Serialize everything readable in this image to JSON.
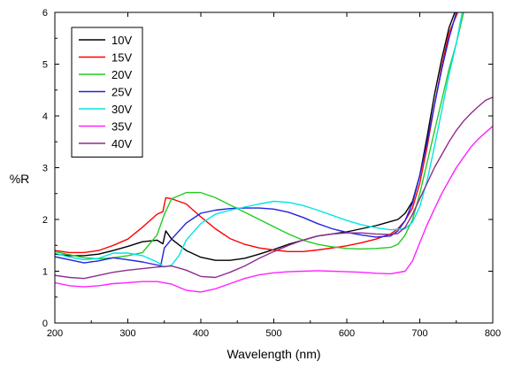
{
  "chart_data": {
    "type": "line",
    "title": "",
    "xlabel": "Wavelength (nm)",
    "ylabel": "%R",
    "xlim": [
      200,
      800
    ],
    "ylim": [
      0,
      6
    ],
    "xticks": [
      200,
      300,
      400,
      500,
      600,
      700,
      800
    ],
    "yticks": [
      0,
      1,
      2,
      3,
      4,
      5,
      6
    ],
    "grid": false,
    "legend_position": "top-left",
    "series": [
      {
        "name": "10V",
        "color": "#000000",
        "x": [
          200,
          220,
          240,
          260,
          280,
          300,
          320,
          340,
          348,
          352,
          360,
          380,
          400,
          420,
          440,
          460,
          480,
          500,
          520,
          540,
          560,
          580,
          600,
          620,
          640,
          660,
          670,
          680,
          690,
          700,
          710,
          720,
          730,
          740,
          748
        ],
        "y": [
          1.33,
          1.3,
          1.3,
          1.33,
          1.4,
          1.48,
          1.57,
          1.6,
          1.53,
          1.78,
          1.62,
          1.4,
          1.27,
          1.21,
          1.21,
          1.25,
          1.33,
          1.42,
          1.52,
          1.6,
          1.68,
          1.72,
          1.76,
          1.82,
          1.88,
          1.96,
          2.0,
          2.12,
          2.35,
          2.85,
          3.6,
          4.4,
          5.1,
          5.7,
          6.0
        ]
      },
      {
        "name": "15V",
        "color": "#ff0000",
        "x": [
          200,
          220,
          240,
          260,
          280,
          300,
          320,
          340,
          348,
          352,
          360,
          380,
          400,
          420,
          440,
          460,
          480,
          500,
          520,
          540,
          560,
          580,
          600,
          620,
          640,
          660,
          670,
          680,
          690,
          700,
          710,
          720,
          730,
          740,
          752
        ],
        "y": [
          1.4,
          1.36,
          1.36,
          1.4,
          1.5,
          1.62,
          1.85,
          2.1,
          2.15,
          2.42,
          2.4,
          2.3,
          2.05,
          1.82,
          1.63,
          1.52,
          1.45,
          1.41,
          1.38,
          1.38,
          1.41,
          1.45,
          1.49,
          1.55,
          1.62,
          1.72,
          1.82,
          1.98,
          2.22,
          2.7,
          3.4,
          4.2,
          4.95,
          5.6,
          6.0
        ]
      },
      {
        "name": "20V",
        "color": "#22cc22",
        "x": [
          200,
          220,
          240,
          260,
          280,
          300,
          320,
          340,
          350,
          360,
          380,
          400,
          420,
          440,
          460,
          480,
          500,
          520,
          540,
          560,
          580,
          600,
          620,
          640,
          660,
          670,
          680,
          690,
          700,
          710,
          720,
          730,
          740,
          750,
          760
        ],
        "y": [
          1.38,
          1.32,
          1.26,
          1.24,
          1.26,
          1.3,
          1.36,
          1.7,
          2.1,
          2.4,
          2.52,
          2.52,
          2.42,
          2.28,
          2.14,
          2.0,
          1.86,
          1.72,
          1.6,
          1.52,
          1.47,
          1.44,
          1.43,
          1.44,
          1.46,
          1.52,
          1.7,
          2.0,
          2.5,
          3.1,
          3.7,
          4.3,
          4.9,
          5.4,
          6.0
        ]
      },
      {
        "name": "25V",
        "color": "#2222dd",
        "x": [
          200,
          220,
          240,
          260,
          280,
          300,
          320,
          340,
          345,
          350,
          360,
          380,
          400,
          420,
          440,
          460,
          480,
          500,
          520,
          540,
          560,
          580,
          600,
          620,
          640,
          660,
          670,
          680,
          690,
          700,
          710,
          720,
          730,
          740,
          750
        ],
        "y": [
          1.28,
          1.22,
          1.16,
          1.2,
          1.26,
          1.22,
          1.18,
          1.12,
          1.1,
          1.45,
          1.62,
          1.93,
          2.12,
          2.18,
          2.21,
          2.22,
          2.22,
          2.2,
          2.14,
          2.04,
          1.92,
          1.82,
          1.75,
          1.7,
          1.66,
          1.68,
          1.78,
          1.98,
          2.32,
          2.85,
          3.5,
          4.2,
          4.9,
          5.5,
          6.0
        ]
      },
      {
        "name": "30V",
        "color": "#00e5e5",
        "x": [
          200,
          220,
          240,
          260,
          280,
          300,
          320,
          340,
          350,
          360,
          370,
          380,
          400,
          420,
          440,
          460,
          480,
          500,
          520,
          540,
          560,
          580,
          600,
          620,
          640,
          660,
          680,
          690,
          700,
          710,
          720,
          730,
          740,
          750,
          758
        ],
        "y": [
          1.35,
          1.27,
          1.22,
          1.25,
          1.35,
          1.35,
          1.3,
          1.18,
          1.08,
          1.12,
          1.3,
          1.6,
          1.92,
          2.1,
          2.18,
          2.24,
          2.3,
          2.35,
          2.33,
          2.27,
          2.18,
          2.08,
          1.98,
          1.9,
          1.84,
          1.8,
          1.82,
          1.95,
          2.25,
          2.75,
          3.4,
          4.1,
          4.8,
          5.4,
          6.0
        ]
      },
      {
        "name": "35V",
        "color": "#ff22ff",
        "x": [
          200,
          220,
          240,
          260,
          280,
          300,
          320,
          340,
          360,
          380,
          400,
          420,
          440,
          460,
          480,
          500,
          520,
          540,
          560,
          580,
          600,
          620,
          640,
          660,
          680,
          690,
          700,
          710,
          720,
          730,
          740,
          750,
          760,
          770,
          780,
          790,
          800
        ],
        "y": [
          0.78,
          0.72,
          0.7,
          0.72,
          0.76,
          0.78,
          0.8,
          0.8,
          0.75,
          0.63,
          0.6,
          0.66,
          0.76,
          0.86,
          0.93,
          0.97,
          0.99,
          1.0,
          1.01,
          1.0,
          0.99,
          0.98,
          0.96,
          0.95,
          1.0,
          1.2,
          1.55,
          1.9,
          2.2,
          2.5,
          2.75,
          3.0,
          3.2,
          3.4,
          3.55,
          3.68,
          3.8
        ]
      },
      {
        "name": "40V",
        "color": "#8e2c8e",
        "x": [
          200,
          220,
          240,
          260,
          280,
          300,
          320,
          340,
          360,
          380,
          400,
          420,
          440,
          460,
          480,
          500,
          520,
          540,
          560,
          580,
          600,
          620,
          640,
          660,
          670,
          680,
          690,
          700,
          710,
          720,
          730,
          740,
          750,
          760,
          770,
          780,
          790,
          800
        ],
        "y": [
          0.92,
          0.88,
          0.86,
          0.92,
          0.98,
          1.02,
          1.05,
          1.08,
          1.1,
          1.02,
          0.9,
          0.88,
          0.98,
          1.1,
          1.25,
          1.38,
          1.5,
          1.6,
          1.68,
          1.72,
          1.74,
          1.74,
          1.72,
          1.71,
          1.73,
          1.85,
          2.1,
          2.4,
          2.7,
          3.0,
          3.25,
          3.5,
          3.72,
          3.9,
          4.05,
          4.18,
          4.3,
          4.36
        ]
      }
    ]
  }
}
